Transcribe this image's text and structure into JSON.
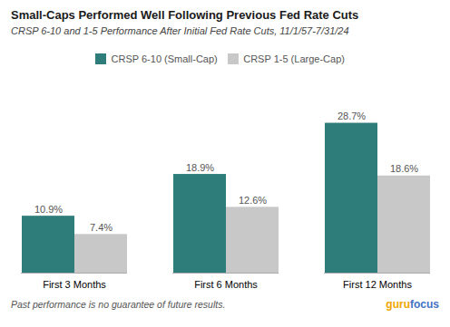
{
  "chart_data": {
    "type": "bar",
    "title": "Small-Caps Performed Well Following Previous Fed Rate Cuts",
    "subtitle": "CRSP 6-10 and 1-5 Performance After Initial Fed Rate Cuts, 11/1/57-7/31/24",
    "categories": [
      "First 3 Months",
      "First 6 Months",
      "First 12 Months"
    ],
    "series": [
      {
        "name": "CRSP 6-10 (Small-Cap)",
        "color": "#2e7d7a",
        "values": [
          10.9,
          18.9,
          28.7
        ],
        "value_labels": [
          "10.9%",
          "18.9%",
          "28.7%"
        ]
      },
      {
        "name": "CRSP 1-5 (Large-Cap)",
        "color": "#c8c8c8",
        "values": [
          7.4,
          12.6,
          18.6
        ],
        "value_labels": [
          "7.4%",
          "12.6%",
          "18.6%"
        ]
      }
    ],
    "ylim": [
      0,
      34
    ],
    "grid": false,
    "legend": "top",
    "data_labels": true,
    "tick_labels": "x",
    "footnote": "Past performance is no guarantee of future results.",
    "annotations": [
      {
        "text": "guru",
        "color": "#f0a500"
      },
      {
        "text": "focus",
        "color": "#4472c4"
      }
    ]
  }
}
